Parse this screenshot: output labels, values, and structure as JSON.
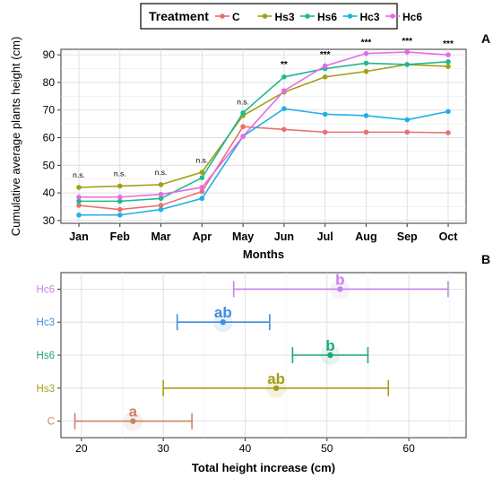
{
  "legend": {
    "title": "Treatment",
    "placement": "top",
    "entries": [
      {
        "name": "C",
        "color": "#e8706c"
      },
      {
        "name": "Hs3",
        "color": "#a3a017"
      },
      {
        "name": "Hs6",
        "color": "#1fb98e"
      },
      {
        "name": "Hc3",
        "color": "#1fb1e6"
      },
      {
        "name": "Hc6",
        "color": "#e66be6"
      }
    ]
  },
  "chart_data": [
    {
      "type": "line",
      "panel_label": "A",
      "xlabel": "Months",
      "ylabel": "Cumulative average plants height (cm)",
      "categories": [
        "Jan",
        "Feb",
        "Mar",
        "Apr",
        "May",
        "Jun",
        "Jul",
        "Aug",
        "Sep",
        "Oct"
      ],
      "ylim": [
        29,
        92
      ],
      "yticks": [
        30,
        40,
        50,
        60,
        70,
        80,
        90
      ],
      "grid": true,
      "series": [
        {
          "name": "C",
          "color": "#e8706c",
          "values": [
            35.5,
            34.0,
            35.5,
            40.5,
            64.0,
            63.0,
            62.0,
            62.0,
            62.0,
            61.8
          ]
        },
        {
          "name": "Hs3",
          "color": "#a3a017",
          "values": [
            42.0,
            42.5,
            43.0,
            47.5,
            68.0,
            76.5,
            82.0,
            84.0,
            86.5,
            85.8
          ]
        },
        {
          "name": "Hs6",
          "color": "#1fb98e",
          "values": [
            37.0,
            37.0,
            38.0,
            45.5,
            69.0,
            82.0,
            85.0,
            87.0,
            86.5,
            87.5
          ]
        },
        {
          "name": "Hc3",
          "color": "#1fb1e6",
          "values": [
            32.0,
            32.0,
            34.0,
            38.0,
            60.5,
            70.5,
            68.5,
            68.0,
            66.5,
            69.5
          ]
        },
        {
          "name": "Hc6",
          "color": "#e66be6",
          "values": [
            38.5,
            38.5,
            39.5,
            42.0,
            60.5,
            77.0,
            86.0,
            90.5,
            91.0,
            90.0
          ]
        }
      ],
      "annotations": [
        {
          "x": "Jan",
          "y": 45.5,
          "text": "n.s."
        },
        {
          "x": "Feb",
          "y": 46.0,
          "text": "n.s."
        },
        {
          "x": "Mar",
          "y": 46.5,
          "text": "n.s."
        },
        {
          "x": "Apr",
          "y": 51.0,
          "text": "n.s."
        },
        {
          "x": "May",
          "y": 72.0,
          "text": "n.s."
        },
        {
          "x": "Jun",
          "y": 85.5,
          "text": "**"
        },
        {
          "x": "Jul",
          "y": 89.0,
          "text": "***"
        },
        {
          "x": "Aug",
          "y": 93.5,
          "text": "***"
        },
        {
          "x": "Sep",
          "y": 94.0,
          "text": "***"
        },
        {
          "x": "Oct",
          "y": 93.0,
          "text": "***"
        }
      ]
    },
    {
      "type": "errorbar",
      "panel_label": "B",
      "xlabel": "Total height increase (cm)",
      "ylabel": "",
      "xlim": [
        17.5,
        67
      ],
      "xticks": [
        20,
        30,
        40,
        50,
        60
      ],
      "grid": true,
      "categories": [
        "C",
        "Hs3",
        "Hs6",
        "Hc3",
        "Hc6"
      ],
      "series": [
        {
          "name": "C",
          "color": "#c98367",
          "mean": 26.3,
          "low": 19.2,
          "high": 33.5,
          "group": "a"
        },
        {
          "name": "Hs3",
          "color": "#a3a017",
          "mean": 43.8,
          "low": 30.0,
          "high": 57.5,
          "group": "ab"
        },
        {
          "name": "Hs6",
          "color": "#1fa57a",
          "mean": 50.4,
          "low": 45.8,
          "high": 55.0,
          "group": "b"
        },
        {
          "name": "Hc3",
          "color": "#3f8fdb",
          "mean": 37.3,
          "low": 31.7,
          "high": 43.0,
          "group": "ab"
        },
        {
          "name": "Hc6",
          "color": "#c782e6",
          "mean": 51.6,
          "low": 38.6,
          "high": 64.8,
          "group": "b"
        }
      ]
    }
  ]
}
